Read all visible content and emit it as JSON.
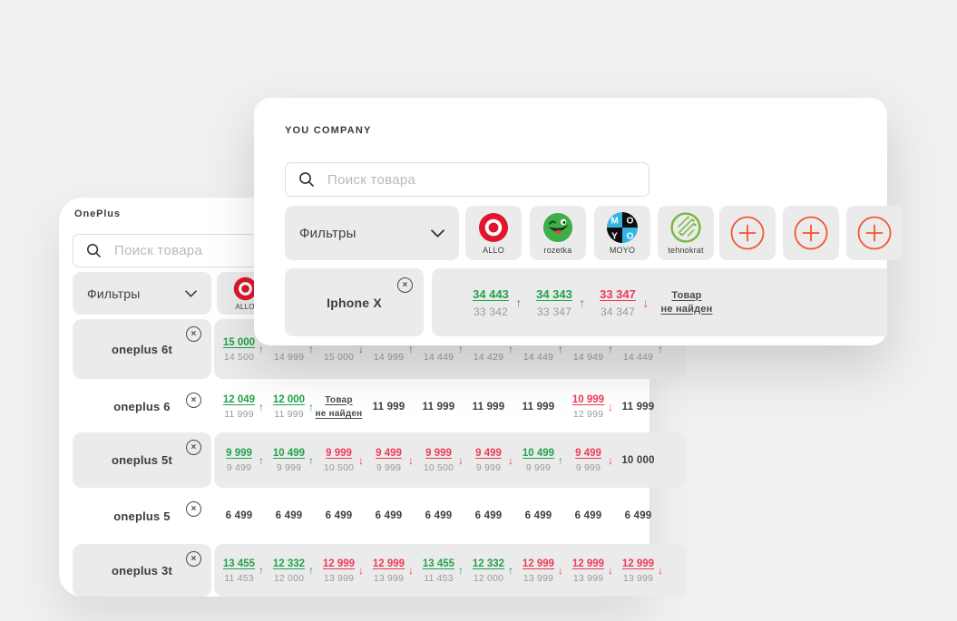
{
  "colors": {
    "green": "#1fa44a",
    "red": "#ee3b58",
    "orange": "#f4552f",
    "tile_gray": "#ebebeb",
    "page_bg": "#f0f0f1"
  },
  "icons": {
    "arrow_up": "↑",
    "arrow_down": "↓",
    "close": "×"
  },
  "not_found": {
    "line1": "Товар",
    "line2": "не найден"
  },
  "front_card": {
    "title": "YOU COMPANY",
    "search": {
      "placeholder": "Поиск товара"
    },
    "filters_label": "Фильтры",
    "stores": [
      {
        "name": "ALLO"
      },
      {
        "name": "rozetka"
      },
      {
        "name": "MOYO"
      },
      {
        "name": "tehnokrat"
      }
    ],
    "product_row": {
      "product": "Iphone X",
      "cells": [
        {
          "t": "ud",
          "m": "34 443",
          "s": "33 342",
          "d": "up"
        },
        {
          "t": "ud",
          "m": "34 343",
          "s": "33 347",
          "d": "up"
        },
        {
          "t": "ud",
          "m": "33 347",
          "s": "34 347",
          "d": "down"
        },
        {
          "t": "nf"
        }
      ]
    }
  },
  "back_card": {
    "title": "OnePlus",
    "search": {
      "placeholder": "Поиск товара"
    },
    "filters_label": "Фильтры",
    "store_label": "ALLO",
    "rows": [
      {
        "product": "oneplus 6t",
        "cells": [
          {
            "t": "ud",
            "m": "15 000",
            "s": "14 500",
            "d": "up"
          },
          {
            "t": "so",
            "s": "14 999",
            "d": "up"
          },
          {
            "t": "so",
            "s": "15 000",
            "d": "down"
          },
          {
            "t": "so",
            "s": "14 999",
            "d": "up"
          },
          {
            "t": "so",
            "s": "14 449",
            "d": "up"
          },
          {
            "t": "so",
            "s": "14 429",
            "d": "up"
          },
          {
            "t": "so",
            "s": "14 449",
            "d": "up"
          },
          {
            "t": "so",
            "s": "14 949",
            "d": "up"
          },
          {
            "t": "so",
            "s": "14 449",
            "d": "up"
          }
        ]
      },
      {
        "product": "oneplus 6",
        "cells": [
          {
            "t": "ud",
            "m": "12 049",
            "s": "11 999",
            "d": "up"
          },
          {
            "t": "ud",
            "m": "12 000",
            "s": "11 999",
            "d": "up"
          },
          {
            "t": "nf"
          },
          {
            "t": "p",
            "v": "11 999"
          },
          {
            "t": "p",
            "v": "11 999"
          },
          {
            "t": "p",
            "v": "11 999"
          },
          {
            "t": "p",
            "v": "11 999"
          },
          {
            "t": "ud",
            "m": "10 999",
            "s": "12 999",
            "d": "down"
          },
          {
            "t": "p",
            "v": "11 999"
          }
        ]
      },
      {
        "product": "oneplus 5t",
        "cells": [
          {
            "t": "ud",
            "m": "9 999",
            "s": "9 499",
            "d": "up"
          },
          {
            "t": "ud",
            "m": "10 499",
            "s": "9 999",
            "d": "up"
          },
          {
            "t": "ud",
            "m": "9 999",
            "s": "10 500",
            "d": "down"
          },
          {
            "t": "ud",
            "m": "9 499",
            "s": "9 999",
            "d": "down"
          },
          {
            "t": "ud",
            "m": "9 999",
            "s": "10 500",
            "d": "down"
          },
          {
            "t": "ud",
            "m": "9 499",
            "s": "9 999",
            "d": "down"
          },
          {
            "t": "ud",
            "m": "10 499",
            "s": "9 999",
            "d": "up"
          },
          {
            "t": "ud",
            "m": "9 499",
            "s": "9 999",
            "d": "down"
          },
          {
            "t": "p",
            "v": "10 000"
          }
        ]
      },
      {
        "product": "oneplus 5",
        "cells": [
          {
            "t": "p",
            "v": "6 499"
          },
          {
            "t": "p",
            "v": "6 499"
          },
          {
            "t": "p",
            "v": "6 499"
          },
          {
            "t": "p",
            "v": "6 499"
          },
          {
            "t": "p",
            "v": "6 499"
          },
          {
            "t": "p",
            "v": "6 499"
          },
          {
            "t": "p",
            "v": "6 499"
          },
          {
            "t": "p",
            "v": "6 499"
          },
          {
            "t": "p",
            "v": "6 499"
          }
        ]
      },
      {
        "product": "oneplus 3t",
        "cells": [
          {
            "t": "ud",
            "m": "13 455",
            "s": "11 453",
            "d": "up"
          },
          {
            "t": "ud",
            "m": "12 332",
            "s": "12 000",
            "d": "up"
          },
          {
            "t": "ud",
            "m": "12 999",
            "s": "13 999",
            "d": "down"
          },
          {
            "t": "ud",
            "m": "12 999",
            "s": "13 999",
            "d": "down"
          },
          {
            "t": "ud",
            "m": "13 455",
            "s": "11 453",
            "d": "up"
          },
          {
            "t": "ud",
            "m": "12 332",
            "s": "12 000",
            "d": "up"
          },
          {
            "t": "ud",
            "m": "12 999",
            "s": "13 999",
            "d": "down"
          },
          {
            "t": "ud",
            "m": "12 999",
            "s": "13 999",
            "d": "down"
          },
          {
            "t": "ud",
            "m": "12 999",
            "s": "13 999",
            "d": "down"
          }
        ]
      }
    ]
  }
}
